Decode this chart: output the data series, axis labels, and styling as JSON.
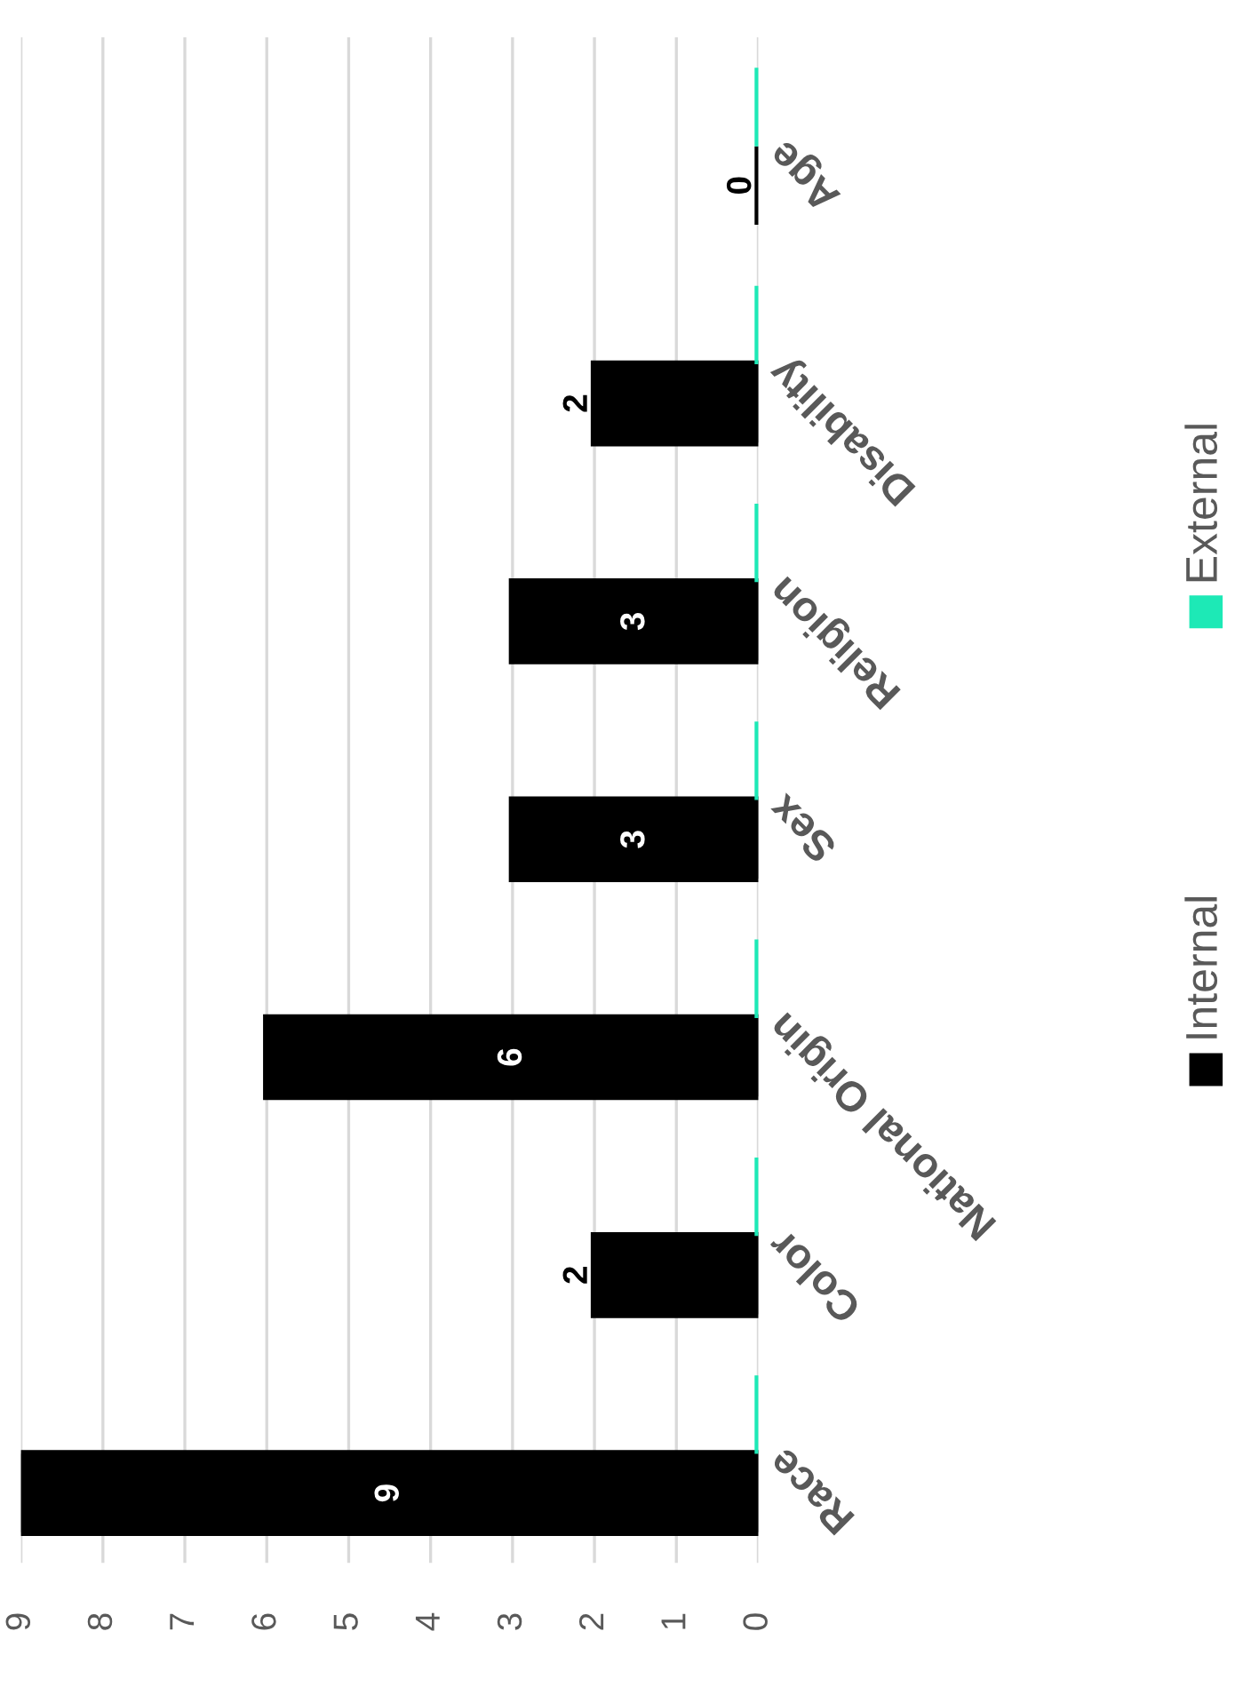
{
  "chart_data": {
    "type": "bar",
    "orientation": "horizontal",
    "categories": [
      "Age",
      "Disability",
      "Religion",
      "Sex",
      "National Origin",
      "Color",
      "Race"
    ],
    "series": [
      {
        "name": "Internal",
        "color": "#000000",
        "values": [
          0,
          2,
          3,
          3,
          6,
          2,
          9
        ],
        "value_labels": [
          "0",
          "2",
          "3",
          "3",
          "6",
          "2",
          "9"
        ]
      },
      {
        "name": "External",
        "color": "#1de9b6",
        "values": [
          0,
          0,
          0,
          0,
          0,
          0,
          0
        ]
      }
    ],
    "xlim": [
      9,
      0
    ],
    "xticks": [
      0,
      1,
      2,
      3,
      4,
      5,
      6,
      7,
      8,
      9
    ],
    "grid": "x",
    "legend": "right"
  }
}
